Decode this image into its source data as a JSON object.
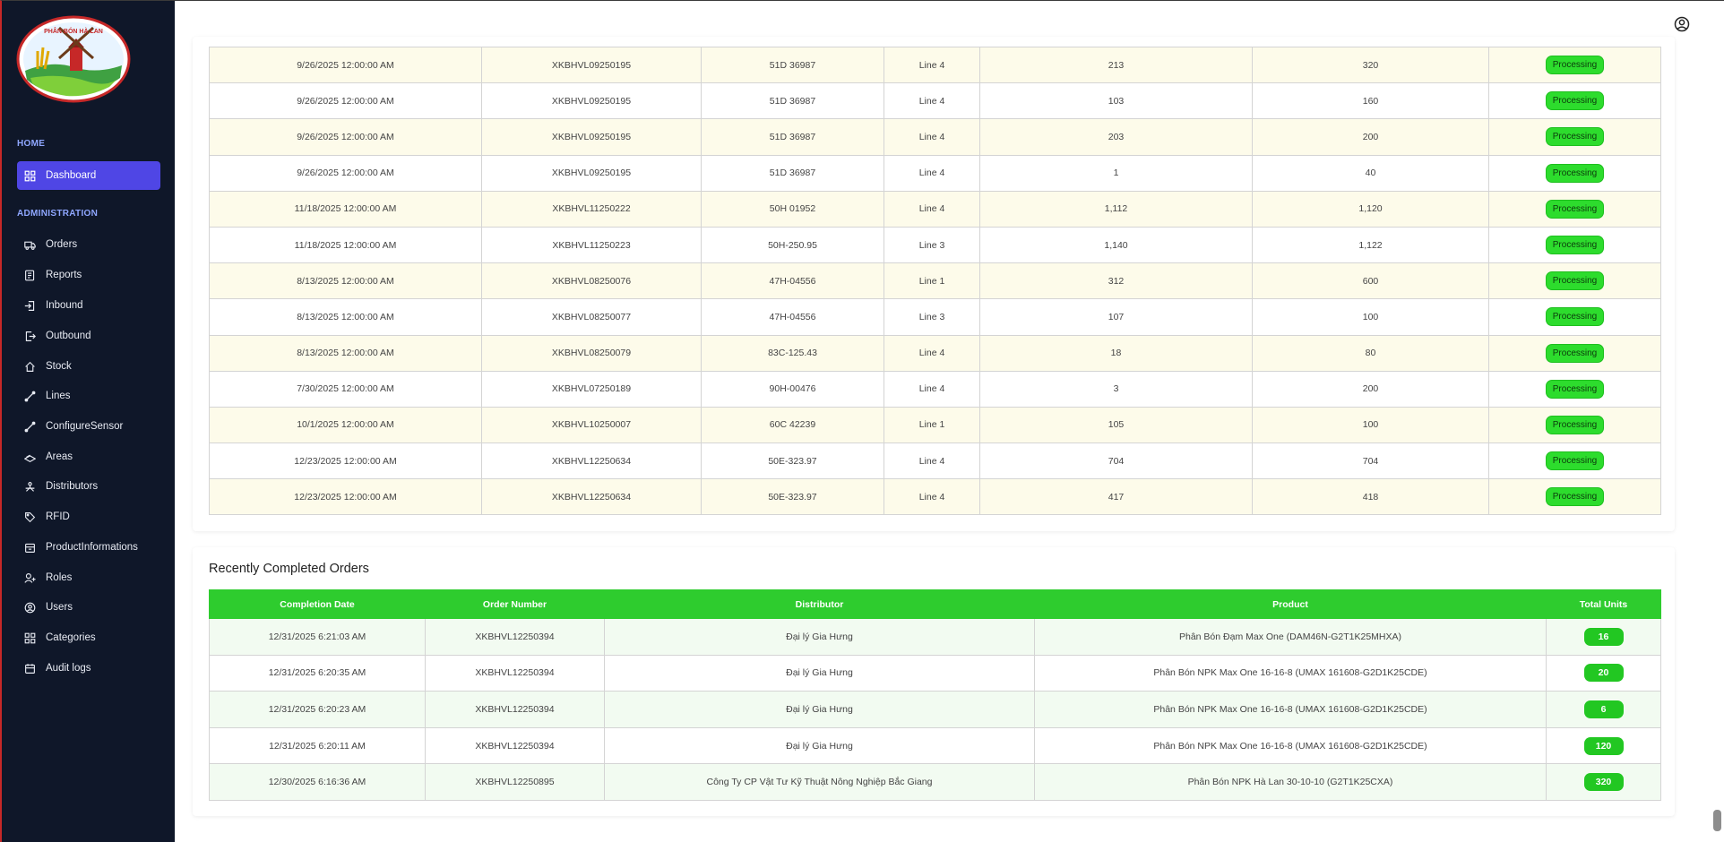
{
  "sidebar": {
    "logo_text": "PHÂN BÓN HÀ LAN",
    "home_title": "HOME",
    "admin_title": "ADMINISTRATION",
    "items": [
      {
        "label": "Dashboard",
        "icon": "grid-icon"
      },
      {
        "label": "Orders",
        "icon": "truck-icon"
      },
      {
        "label": "Reports",
        "icon": "report-icon"
      },
      {
        "label": "Inbound",
        "icon": "inbound-icon"
      },
      {
        "label": "Outbound",
        "icon": "outbound-icon"
      },
      {
        "label": "Stock",
        "icon": "home-icon"
      },
      {
        "label": "Lines",
        "icon": "line-icon"
      },
      {
        "label": "ConfigureSensor",
        "icon": "line-icon"
      },
      {
        "label": "Areas",
        "icon": "layers-icon"
      },
      {
        "label": "Distributors",
        "icon": "network-icon"
      },
      {
        "label": "RFID",
        "icon": "tag-icon"
      },
      {
        "label": "ProductInformations",
        "icon": "box-icon"
      },
      {
        "label": "Roles",
        "icon": "user-plus-icon"
      },
      {
        "label": "Users",
        "icon": "user-circle-icon"
      },
      {
        "label": "Categories",
        "icon": "grid-icon"
      },
      {
        "label": "Audit logs",
        "icon": "calendar-icon"
      }
    ]
  },
  "processing": {
    "status_label": "Processing",
    "rows": [
      [
        "9/26/2025 12:00:00 AM",
        "XKBHVL09250195",
        "51D 36987",
        "Line 4",
        "213",
        "320"
      ],
      [
        "9/26/2025 12:00:00 AM",
        "XKBHVL09250195",
        "51D 36987",
        "Line 4",
        "103",
        "160"
      ],
      [
        "9/26/2025 12:00:00 AM",
        "XKBHVL09250195",
        "51D 36987",
        "Line 4",
        "203",
        "200"
      ],
      [
        "9/26/2025 12:00:00 AM",
        "XKBHVL09250195",
        "51D 36987",
        "Line 4",
        "1",
        "40"
      ],
      [
        "11/18/2025 12:00:00 AM",
        "XKBHVL11250222",
        "50H 01952",
        "Line 4",
        "1,112",
        "1,120"
      ],
      [
        "11/18/2025 12:00:00 AM",
        "XKBHVL11250223",
        "50H-250.95",
        "Line 3",
        "1,140",
        "1,122"
      ],
      [
        "8/13/2025 12:00:00 AM",
        "XKBHVL08250076",
        "47H-04556",
        "Line 1",
        "312",
        "600"
      ],
      [
        "8/13/2025 12:00:00 AM",
        "XKBHVL08250077",
        "47H-04556",
        "Line 3",
        "107",
        "100"
      ],
      [
        "8/13/2025 12:00:00 AM",
        "XKBHVL08250079",
        "83C-125.43",
        "Line 4",
        "18",
        "80"
      ],
      [
        "7/30/2025 12:00:00 AM",
        "XKBHVL07250189",
        "90H-00476",
        "Line 4",
        "3",
        "200"
      ],
      [
        "10/1/2025 12:00:00 AM",
        "XKBHVL10250007",
        "60C 42239",
        "Line 1",
        "105",
        "100"
      ],
      [
        "12/23/2025 12:00:00 AM",
        "XKBHVL12250634",
        "50E-323.97",
        "Line 4",
        "704",
        "704"
      ],
      [
        "12/23/2025 12:00:00 AM",
        "XKBHVL12250634",
        "50E-323.97",
        "Line 4",
        "417",
        "418"
      ]
    ]
  },
  "completed": {
    "title": "Recently Completed Orders",
    "headers": [
      "Completion Date",
      "Order Number",
      "Distributor",
      "Product",
      "Total Units"
    ],
    "rows": [
      [
        "12/31/2025 6:21:03 AM",
        "XKBHVL12250394",
        "Đại lý Gia Hưng",
        "Phân Bón Đạm Max One (DAM46N-G2T1K25MHXA)",
        "16"
      ],
      [
        "12/31/2025 6:20:35 AM",
        "XKBHVL12250394",
        "Đại lý Gia Hưng",
        "Phân Bón NPK Max One 16-16-8 (UMAX 161608-G2D1K25CDE)",
        "20"
      ],
      [
        "12/31/2025 6:20:23 AM",
        "XKBHVL12250394",
        "Đại lý Gia Hưng",
        "Phân Bón NPK Max One 16-16-8 (UMAX 161608-G2D1K25CDE)",
        "6"
      ],
      [
        "12/31/2025 6:20:11 AM",
        "XKBHVL12250394",
        "Đại lý Gia Hưng",
        "Phân Bón NPK Max One 16-16-8 (UMAX 161608-G2D1K25CDE)",
        "120"
      ],
      [
        "12/30/2025 6:16:36 AM",
        "XKBHVL12250895",
        "Công Ty CP Vật Tư Kỹ Thuật Nông Nghiệp Bắc Giang",
        "Phân Bón NPK Hà Lan 30-10-10 (G2T1K25CXA)",
        "320"
      ]
    ]
  },
  "colors": {
    "sidebar_bg": "#0f1729",
    "active_nav": "#4f46e5",
    "status_green": "#2ddc2d",
    "header_green": "#2ecc2e"
  }
}
